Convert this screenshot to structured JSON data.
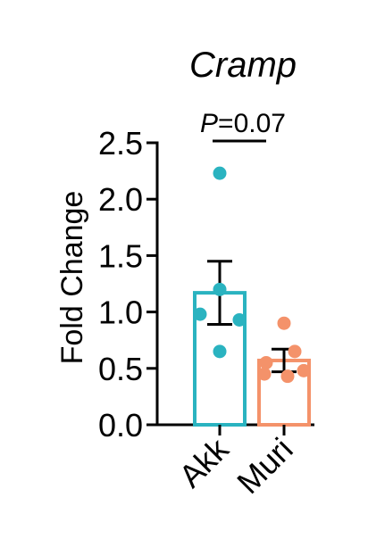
{
  "chart_data": {
    "type": "bar",
    "title": "Cramp",
    "ylabel": "Fold Change",
    "xlabel": "",
    "ylim": [
      0,
      2.5
    ],
    "yticks": [
      0.0,
      0.5,
      1.0,
      1.5,
      2.0,
      2.5
    ],
    "ytick_labels": [
      "0.0",
      "0.5",
      "1.0",
      "1.5",
      "2.0",
      "2.5"
    ],
    "grid": false,
    "categories": [
      "Akk",
      "Muri"
    ],
    "values": [
      1.17,
      0.57
    ],
    "errors": [
      0.28,
      0.1
    ],
    "colors": [
      "#2ab3c0",
      "#f4926a"
    ],
    "points": [
      [
        2.23,
        1.2,
        0.98,
        0.93,
        0.65
      ],
      [
        0.9,
        0.65,
        0.55,
        0.48,
        0.45,
        0.43
      ]
    ],
    "annotation": {
      "text": "P=0.07",
      "italic_part": "P",
      "rest": "=0.07",
      "between": [
        "Akk",
        "Muri"
      ]
    }
  }
}
